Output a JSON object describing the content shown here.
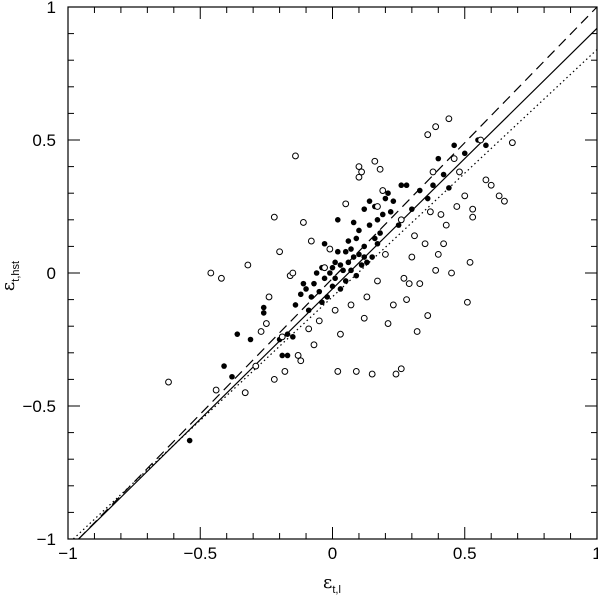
{
  "chart_data": {
    "type": "scatter",
    "title": "",
    "xlabel": {
      "symbol": "ε",
      "subscript": "t,l"
    },
    "ylabel": {
      "symbol": "ε",
      "subscript": "t,hst"
    },
    "xlim": [
      -1,
      1
    ],
    "ylim": [
      -1,
      1
    ],
    "x_ticks": [
      -1,
      -0.5,
      0,
      0.5,
      1
    ],
    "y_ticks": [
      -1,
      -0.5,
      0,
      0.5,
      1
    ],
    "x_tick_labels": [
      "−1",
      "−0.5",
      "0",
      "0.5",
      "1"
    ],
    "y_tick_labels": [
      "−1",
      "−0.5",
      "0",
      "0.5",
      "1"
    ],
    "grid": false,
    "series": [
      {
        "marker": "filled-circle",
        "points": [
          [
            -0.54,
            -0.63
          ],
          [
            -0.41,
            -0.35
          ],
          [
            -0.38,
            -0.39
          ],
          [
            -0.36,
            -0.23
          ],
          [
            -0.31,
            -0.25
          ],
          [
            -0.26,
            -0.15
          ],
          [
            -0.26,
            -0.13
          ],
          [
            -0.2,
            -0.25
          ],
          [
            -0.19,
            -0.31
          ],
          [
            -0.17,
            -0.23
          ],
          [
            -0.17,
            -0.31
          ],
          [
            -0.15,
            -0.24
          ],
          [
            -0.14,
            -0.12
          ],
          [
            -0.12,
            -0.08
          ],
          [
            -0.11,
            -0.04
          ],
          [
            -0.1,
            -0.06
          ],
          [
            -0.09,
            -0.14
          ],
          [
            -0.08,
            -0.09
          ],
          [
            -0.07,
            -0.04
          ],
          [
            -0.06,
            0.0
          ],
          [
            -0.05,
            -0.07
          ],
          [
            -0.04,
            -0.11
          ],
          [
            -0.04,
            0.02
          ],
          [
            -0.03,
            -0.02
          ],
          [
            -0.02,
            -0.09
          ],
          [
            -0.01,
            0.0
          ],
          [
            0.0,
            0.02
          ],
          [
            0.0,
            -0.05
          ],
          [
            0.01,
            0.04
          ],
          [
            0.01,
            -0.02
          ],
          [
            0.02,
            0.08
          ],
          [
            0.03,
            -0.06
          ],
          [
            0.03,
            0.03
          ],
          [
            0.04,
            0.01
          ],
          [
            0.05,
            0.08
          ],
          [
            0.05,
            -0.03
          ],
          [
            0.06,
            0.12
          ],
          [
            0.06,
            0.04
          ],
          [
            0.07,
            0.01
          ],
          [
            0.07,
            0.09
          ],
          [
            0.08,
            0.06
          ],
          [
            0.08,
            0.19
          ],
          [
            0.09,
            0.13
          ],
          [
            0.09,
            -0.01
          ],
          [
            0.1,
            0.07
          ],
          [
            0.1,
            0.16
          ],
          [
            0.11,
            0.03
          ],
          [
            0.12,
            0.24
          ],
          [
            0.12,
            0.1
          ],
          [
            0.13,
            0.04
          ],
          [
            0.14,
            0.27
          ],
          [
            0.14,
            0.18
          ],
          [
            0.15,
            0.06
          ],
          [
            0.16,
            0.13
          ],
          [
            0.16,
            0.25
          ],
          [
            0.17,
            0.11
          ],
          [
            0.17,
            0.2
          ],
          [
            0.18,
            0.15
          ],
          [
            0.19,
            0.22
          ],
          [
            0.2,
            0.28
          ],
          [
            0.21,
            0.3
          ],
          [
            0.22,
            0.23
          ],
          [
            0.23,
            0.27
          ],
          [
            0.25,
            0.18
          ],
          [
            0.26,
            0.33
          ],
          [
            0.28,
            0.33
          ],
          [
            0.3,
            0.24
          ],
          [
            0.33,
            0.31
          ],
          [
            0.36,
            0.28
          ],
          [
            0.38,
            0.33
          ],
          [
            0.4,
            0.43
          ],
          [
            0.42,
            0.37
          ],
          [
            0.44,
            0.32
          ],
          [
            0.46,
            0.48
          ],
          [
            0.5,
            0.45
          ],
          [
            0.55,
            0.5
          ],
          [
            0.58,
            0.48
          ],
          [
            0.12,
            0.06
          ],
          [
            0.02,
            0.2
          ],
          [
            -0.03,
            0.11
          ]
        ]
      },
      {
        "marker": "open-circle",
        "points": [
          [
            -0.62,
            -0.41
          ],
          [
            -0.44,
            -0.44
          ],
          [
            -0.46,
            0.0
          ],
          [
            -0.42,
            -0.02
          ],
          [
            -0.33,
            -0.45
          ],
          [
            -0.32,
            0.03
          ],
          [
            -0.29,
            -0.35
          ],
          [
            -0.27,
            -0.22
          ],
          [
            -0.25,
            -0.19
          ],
          [
            -0.24,
            -0.09
          ],
          [
            -0.22,
            -0.4
          ],
          [
            -0.22,
            0.21
          ],
          [
            -0.2,
            0.08
          ],
          [
            -0.19,
            -0.24
          ],
          [
            -0.18,
            -0.37
          ],
          [
            -0.16,
            -0.01
          ],
          [
            -0.15,
            0.0
          ],
          [
            -0.14,
            0.44
          ],
          [
            -0.13,
            -0.31
          ],
          [
            -0.12,
            -0.33
          ],
          [
            -0.11,
            0.19
          ],
          [
            -0.09,
            -0.21
          ],
          [
            -0.08,
            0.12
          ],
          [
            -0.07,
            -0.27
          ],
          [
            -0.05,
            -0.18
          ],
          [
            -0.03,
            0.02
          ],
          [
            -0.01,
            0.09
          ],
          [
            0.01,
            -0.14
          ],
          [
            0.02,
            -0.37
          ],
          [
            0.03,
            -0.23
          ],
          [
            0.05,
            0.26
          ],
          [
            0.07,
            -0.12
          ],
          [
            0.09,
            -0.37
          ],
          [
            0.1,
            0.4
          ],
          [
            0.1,
            0.36
          ],
          [
            0.11,
            0.38
          ],
          [
            0.12,
            -0.17
          ],
          [
            0.13,
            -0.09
          ],
          [
            0.15,
            -0.38
          ],
          [
            0.16,
            0.42
          ],
          [
            0.17,
            0.25
          ],
          [
            0.17,
            -0.03
          ],
          [
            0.18,
            0.39
          ],
          [
            0.19,
            0.31
          ],
          [
            0.2,
            0.07
          ],
          [
            0.21,
            -0.19
          ],
          [
            0.23,
            -0.12
          ],
          [
            0.24,
            -0.38
          ],
          [
            0.26,
            -0.36
          ],
          [
            0.27,
            -0.02
          ],
          [
            0.28,
            -0.1
          ],
          [
            0.29,
            -0.04
          ],
          [
            0.3,
            0.06
          ],
          [
            0.31,
            0.14
          ],
          [
            0.32,
            -0.22
          ],
          [
            0.33,
            -0.04
          ],
          [
            0.35,
            0.11
          ],
          [
            0.36,
            -0.16
          ],
          [
            0.37,
            0.23
          ],
          [
            0.38,
            0.38
          ],
          [
            0.39,
            0.01
          ],
          [
            0.4,
            0.07
          ],
          [
            0.41,
            0.22
          ],
          [
            0.42,
            0.11
          ],
          [
            0.43,
            0.18
          ],
          [
            0.44,
            0.58
          ],
          [
            0.45,
            0.0
          ],
          [
            0.47,
            0.25
          ],
          [
            0.48,
            0.38
          ],
          [
            0.5,
            0.29
          ],
          [
            0.51,
            -0.11
          ],
          [
            0.52,
            0.04
          ],
          [
            0.53,
            0.21
          ],
          [
            0.53,
            0.24
          ],
          [
            0.56,
            0.5
          ],
          [
            0.58,
            0.35
          ],
          [
            0.6,
            0.33
          ],
          [
            0.63,
            0.29
          ],
          [
            0.65,
            0.27
          ],
          [
            0.68,
            0.49
          ],
          [
            0.36,
            0.52
          ],
          [
            0.39,
            0.55
          ],
          [
            0.46,
            0.43
          ],
          [
            0.26,
            0.2
          ]
        ]
      }
    ],
    "lines": [
      {
        "style": "solid",
        "endpoints": [
          [
            -0.96,
            -1.0
          ],
          [
            1.0,
            0.92
          ]
        ]
      },
      {
        "style": "dashed",
        "endpoints": [
          [
            -0.96,
            -1.0
          ],
          [
            1.0,
            1.0
          ]
        ]
      },
      {
        "style": "dotted",
        "endpoints": [
          [
            -0.98,
            -1.0
          ],
          [
            1.0,
            0.84
          ]
        ]
      }
    ]
  }
}
